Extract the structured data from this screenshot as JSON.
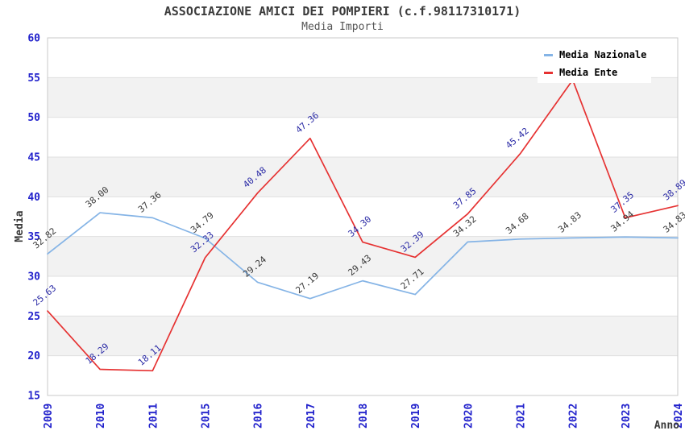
{
  "chart_data": {
    "type": "line",
    "title": "ASSOCIAZIONE AMICI DEI POMPIERI (c.f.98117310171)",
    "subtitle": "Media Importi",
    "xlabel": "Anno",
    "ylabel": "Media",
    "categories": [
      "2009",
      "2010",
      "2011",
      "2015",
      "2016",
      "2017",
      "2018",
      "2019",
      "2020",
      "2021",
      "2022",
      "2023",
      "2024"
    ],
    "series": [
      {
        "name": "Media Nazionale",
        "color": "#85b4e6",
        "label_color": "#3a3a3a",
        "values": [
          32.82,
          38.0,
          37.36,
          34.79,
          29.24,
          27.19,
          29.43,
          27.71,
          34.32,
          34.68,
          34.83,
          34.94,
          34.83
        ],
        "labels": [
          "32.82",
          "38.00",
          "37.36",
          "34.79",
          "29.24",
          "27.19",
          "29.43",
          "27.71",
          "34.32",
          "34.68",
          "34.83",
          "34.94",
          "34.83"
        ]
      },
      {
        "name": "Media Ente",
        "color": "#e63232",
        "label_color": "#2b2ba6",
        "values": [
          25.63,
          18.29,
          18.11,
          32.33,
          40.48,
          47.36,
          34.3,
          32.39,
          37.85,
          45.42,
          54.7,
          37.35,
          38.89
        ],
        "labels": [
          "25.63",
          "18.29",
          "18.11",
          "32.33",
          "40.48",
          "47.36",
          "34.30",
          "32.39",
          "37.85",
          "45.42",
          "",
          "37.35",
          "38.89"
        ]
      }
    ],
    "ylim": [
      15,
      60
    ],
    "ytick_step": 5,
    "yticks": [
      15,
      20,
      25,
      30,
      35,
      40,
      45,
      50,
      55,
      60
    ],
    "grid": true,
    "legend_position": "top-right",
    "colors": {
      "tick_label": "#2222cc",
      "band": "#f2f2f2",
      "gridline": "#e0e0e0",
      "plot_border": "#c9c9c9",
      "axis_title": "#3a3a3a"
    }
  },
  "legend": {
    "items": [
      {
        "label": "Media Nazionale"
      },
      {
        "label": "Media Ente"
      }
    ]
  }
}
